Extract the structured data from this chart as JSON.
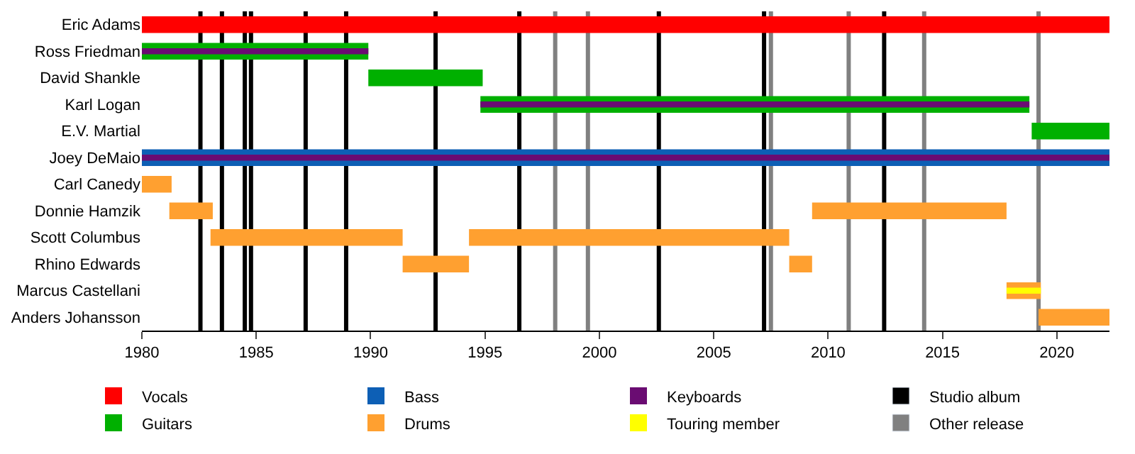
{
  "chart_data": {
    "type": "bar",
    "orientation": "horizontal",
    "categories": [
      "Eric Adams",
      "Ross Friedman",
      "David Shankle",
      "Karl Logan",
      "E.V. Martial",
      "Joey DeMaio",
      "Carl Canedy",
      "Donnie Hamzik",
      "Scott Columbus",
      "Rhino Edwards",
      "Marcus Castellani",
      "Anders Johansson"
    ],
    "series": [
      {
        "name": "Vocals",
        "color": "#ff0000",
        "base": [
          1980,
          null,
          null,
          null,
          null,
          null,
          null,
          null,
          null,
          null,
          null,
          null
        ],
        "values": [
          42.3,
          null,
          null,
          null,
          null,
          null,
          null,
          null,
          null,
          null,
          null,
          null
        ]
      },
      {
        "name": "Guitars",
        "color": "#00b000",
        "base": [
          null,
          1980,
          1989.9,
          1994.8,
          2018.9,
          null,
          null,
          null,
          null,
          null,
          null,
          null
        ],
        "values": [
          null,
          9.9,
          5.0,
          24.0,
          3.4,
          null,
          null,
          null,
          null,
          null,
          null,
          null
        ]
      },
      {
        "name": "Bass",
        "color": "#0d5fb5",
        "base": [
          null,
          null,
          null,
          null,
          null,
          1980,
          null,
          null,
          null,
          null,
          null,
          null
        ],
        "values": [
          null,
          null,
          null,
          null,
          null,
          42.3,
          null,
          null,
          null,
          null,
          null,
          null
        ]
      },
      {
        "name": "Drums",
        "color": "#ffa030",
        "base": [
          null,
          null,
          null,
          null,
          null,
          null,
          1980,
          1981.2,
          1983.0,
          1991.4,
          2017.8,
          2019.2
        ],
        "values": [
          null,
          null,
          null,
          null,
          null,
          null,
          1.3,
          1.9,
          8.4,
          2.9,
          1.5,
          3.1
        ]
      },
      {
        "color": "#ffa030",
        "base": [
          null,
          null,
          null,
          null,
          null,
          null,
          null,
          2009.3,
          1994.3,
          2008.3,
          null,
          null
        ],
        "values": [
          null,
          null,
          null,
          null,
          null,
          null,
          null,
          8.5,
          14.0,
          1.0,
          null,
          null
        ]
      },
      {
        "name": "Keyboards",
        "color": "#6a0c72",
        "base": [
          null,
          1980,
          null,
          1994.8,
          null,
          1980,
          null,
          null,
          null,
          null,
          null,
          null
        ],
        "values": [
          null,
          9.9,
          null,
          24.0,
          null,
          42.3,
          null,
          null,
          null,
          null,
          null,
          null
        ]
      },
      {
        "name": "Touring member",
        "color": "#ffff00",
        "base": [
          null,
          null,
          null,
          null,
          null,
          null,
          null,
          null,
          null,
          null,
          2017.8,
          null
        ],
        "values": [
          null,
          null,
          null,
          null,
          null,
          null,
          null,
          null,
          null,
          null,
          1.5,
          null
        ]
      }
    ],
    "xlim": [
      1980,
      2022.3
    ],
    "xticks": [
      1980,
      1985,
      1990,
      1995,
      2000,
      2005,
      2010,
      2015,
      2020
    ],
    "ref_lines": [
      {
        "axis": "x",
        "value": 1982.56,
        "label": "Studio album",
        "color": "#000000"
      },
      {
        "axis": "x",
        "value": 1983.5,
        "color": "#000000"
      },
      {
        "axis": "x",
        "value": 1984.5,
        "color": "#000000"
      },
      {
        "axis": "x",
        "value": 1984.77,
        "color": "#000000"
      },
      {
        "axis": "x",
        "value": 1987.16,
        "color": "#000000"
      },
      {
        "axis": "x",
        "value": 1988.93,
        "color": "#000000"
      },
      {
        "axis": "x",
        "value": 1992.84,
        "color": "#000000"
      },
      {
        "axis": "x",
        "value": 1996.5,
        "color": "#000000"
      },
      {
        "axis": "x",
        "value": 2002.6,
        "color": "#000000"
      },
      {
        "axis": "x",
        "value": 2007.2,
        "color": "#000000"
      },
      {
        "axis": "x",
        "value": 2012.45,
        "color": "#000000"
      },
      {
        "axis": "x",
        "value": 1998.07,
        "label": "Other release",
        "color": "#808080"
      },
      {
        "axis": "x",
        "value": 1999.5,
        "color": "#808080"
      },
      {
        "axis": "x",
        "value": 2007.5,
        "color": "#808080"
      },
      {
        "axis": "x",
        "value": 2010.9,
        "color": "#808080"
      },
      {
        "axis": "x",
        "value": 2014.2,
        "color": "#808080"
      },
      {
        "axis": "x",
        "value": 2019.2,
        "color": "#808080"
      }
    ],
    "legend": "bottom"
  }
}
